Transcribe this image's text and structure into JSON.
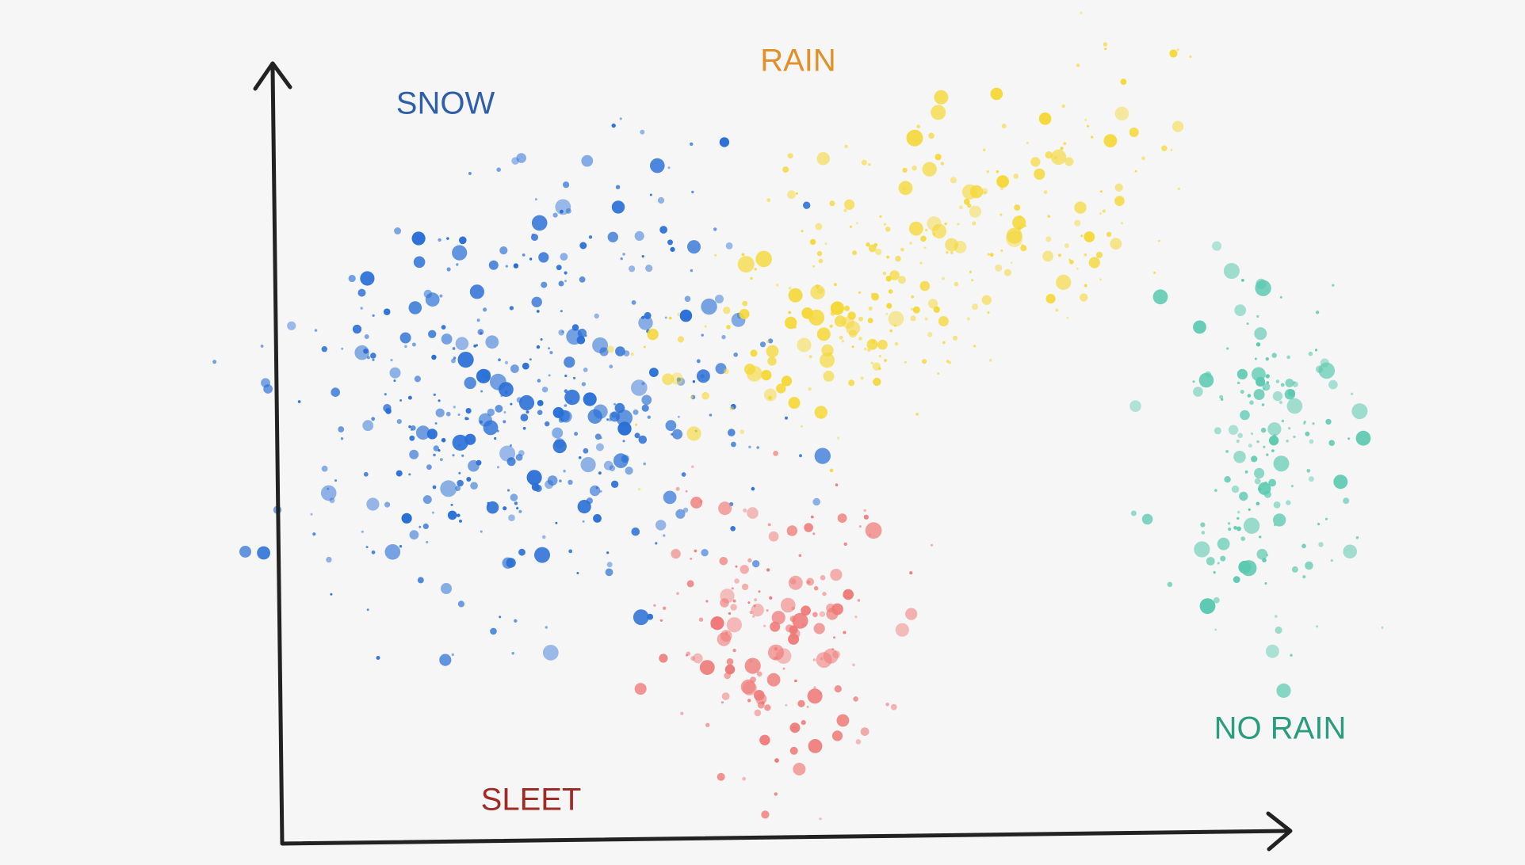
{
  "labels": {
    "snow": "SNOW",
    "rain": "RAIN",
    "sleet": "SLEET",
    "no_rain": "NO RAIN"
  }
}
